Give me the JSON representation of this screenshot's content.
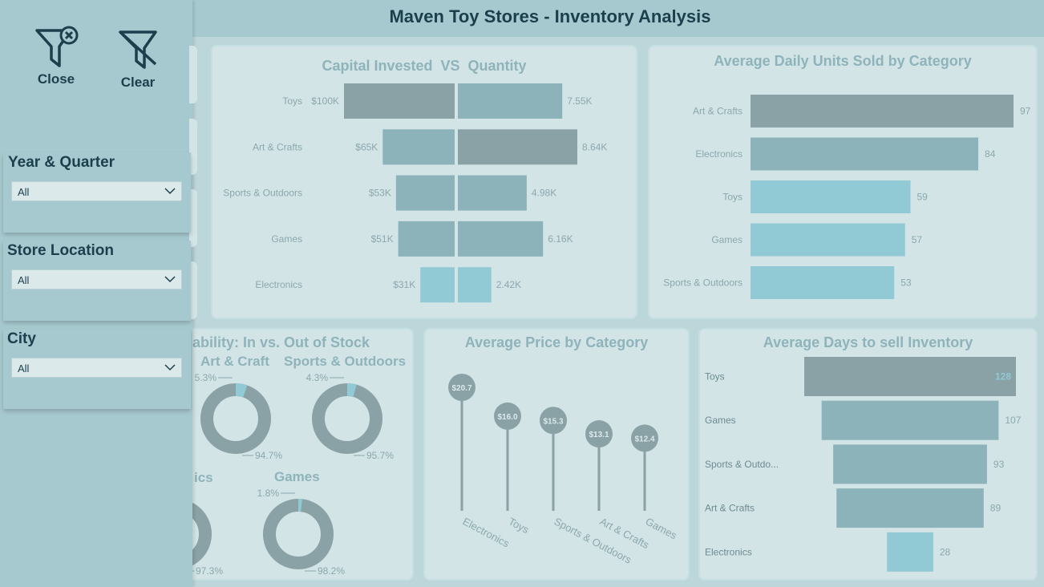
{
  "header": {
    "title": "Maven Toy Stores - Inventory Analysis"
  },
  "filter_panel": {
    "close_label": "Close",
    "clear_label": "Clear",
    "slicers": [
      {
        "title": "Year & Quarter",
        "value": "All"
      },
      {
        "title": "Store Location",
        "value": "All"
      },
      {
        "title": "City",
        "value": "All"
      }
    ]
  },
  "capital_chart": {
    "title": "Capital Invested  VS  Quantity",
    "chart_data": {
      "type": "bar",
      "categories": [
        "Toys",
        "Art & Crafts",
        "Sports & Outdoors",
        "Games",
        "Electronics"
      ],
      "series": [
        {
          "values": [
            100,
            65,
            53,
            51,
            31
          ],
          "labels": [
            "$100K",
            "$65K",
            "$53K",
            "$51K",
            "$31K"
          ]
        },
        {
          "values": [
            7.55,
            8.64,
            4.98,
            6.16,
            2.42
          ],
          "labels": [
            "7.55K",
            "8.64K",
            "4.98K",
            "6.16K",
            "2.42K"
          ]
        }
      ]
    }
  },
  "daily_units_chart": {
    "title": "Average Daily Units Sold by Category",
    "chart_data": {
      "type": "bar",
      "categories": [
        "Art & Crafts",
        "Electronics",
        "Toys",
        "Games",
        "Sports & Outdoors"
      ],
      "values": [
        97,
        84,
        59,
        57,
        53
      ]
    }
  },
  "availability_chart": {
    "title": "ability: In vs. Out of Stock",
    "donuts": [
      {
        "name": "Art & Craft",
        "out_pct": 5.3,
        "in_pct": 94.7,
        "out_label": "5.3%",
        "in_label": "94.7%"
      },
      {
        "name": "Sports & Outdoors",
        "out_pct": 4.3,
        "in_pct": 95.7,
        "out_label": "4.3%",
        "in_label": "95.7%"
      },
      {
        "name": "ics",
        "out_pct": 2.7,
        "in_pct": 97.3,
        "out_label": "",
        "in_label": "97.3%"
      },
      {
        "name": "Games",
        "out_pct": 1.8,
        "in_pct": 98.2,
        "out_label": "1.8%",
        "in_label": "98.2%"
      }
    ]
  },
  "avg_price_chart": {
    "title": "Average Price by Category",
    "chart_data": {
      "type": "bar",
      "categories": [
        "Electronics",
        "Toys",
        "Sports & Outdoors",
        "Art & Crafts",
        "Games"
      ],
      "values": [
        20.7,
        16.0,
        15.3,
        13.1,
        12.4
      ],
      "labels": [
        "$20.7",
        "$16.0",
        "$15.3",
        "$13.1",
        "$12.4"
      ]
    }
  },
  "days_to_sell_chart": {
    "title": "Average Days to sell Inventory",
    "chart_data": {
      "type": "bar",
      "categories": [
        "Toys",
        "Games",
        "Sports & Outdo...",
        "Art & Crafts",
        "Electronics"
      ],
      "values": [
        128,
        107,
        93,
        89,
        28
      ]
    }
  },
  "colors": {
    "dark": "#8aa1a6",
    "mid": "#8bb3b9",
    "light": "#91cad5",
    "label": "#8ba8ae",
    "title": "#1b3f4c"
  }
}
